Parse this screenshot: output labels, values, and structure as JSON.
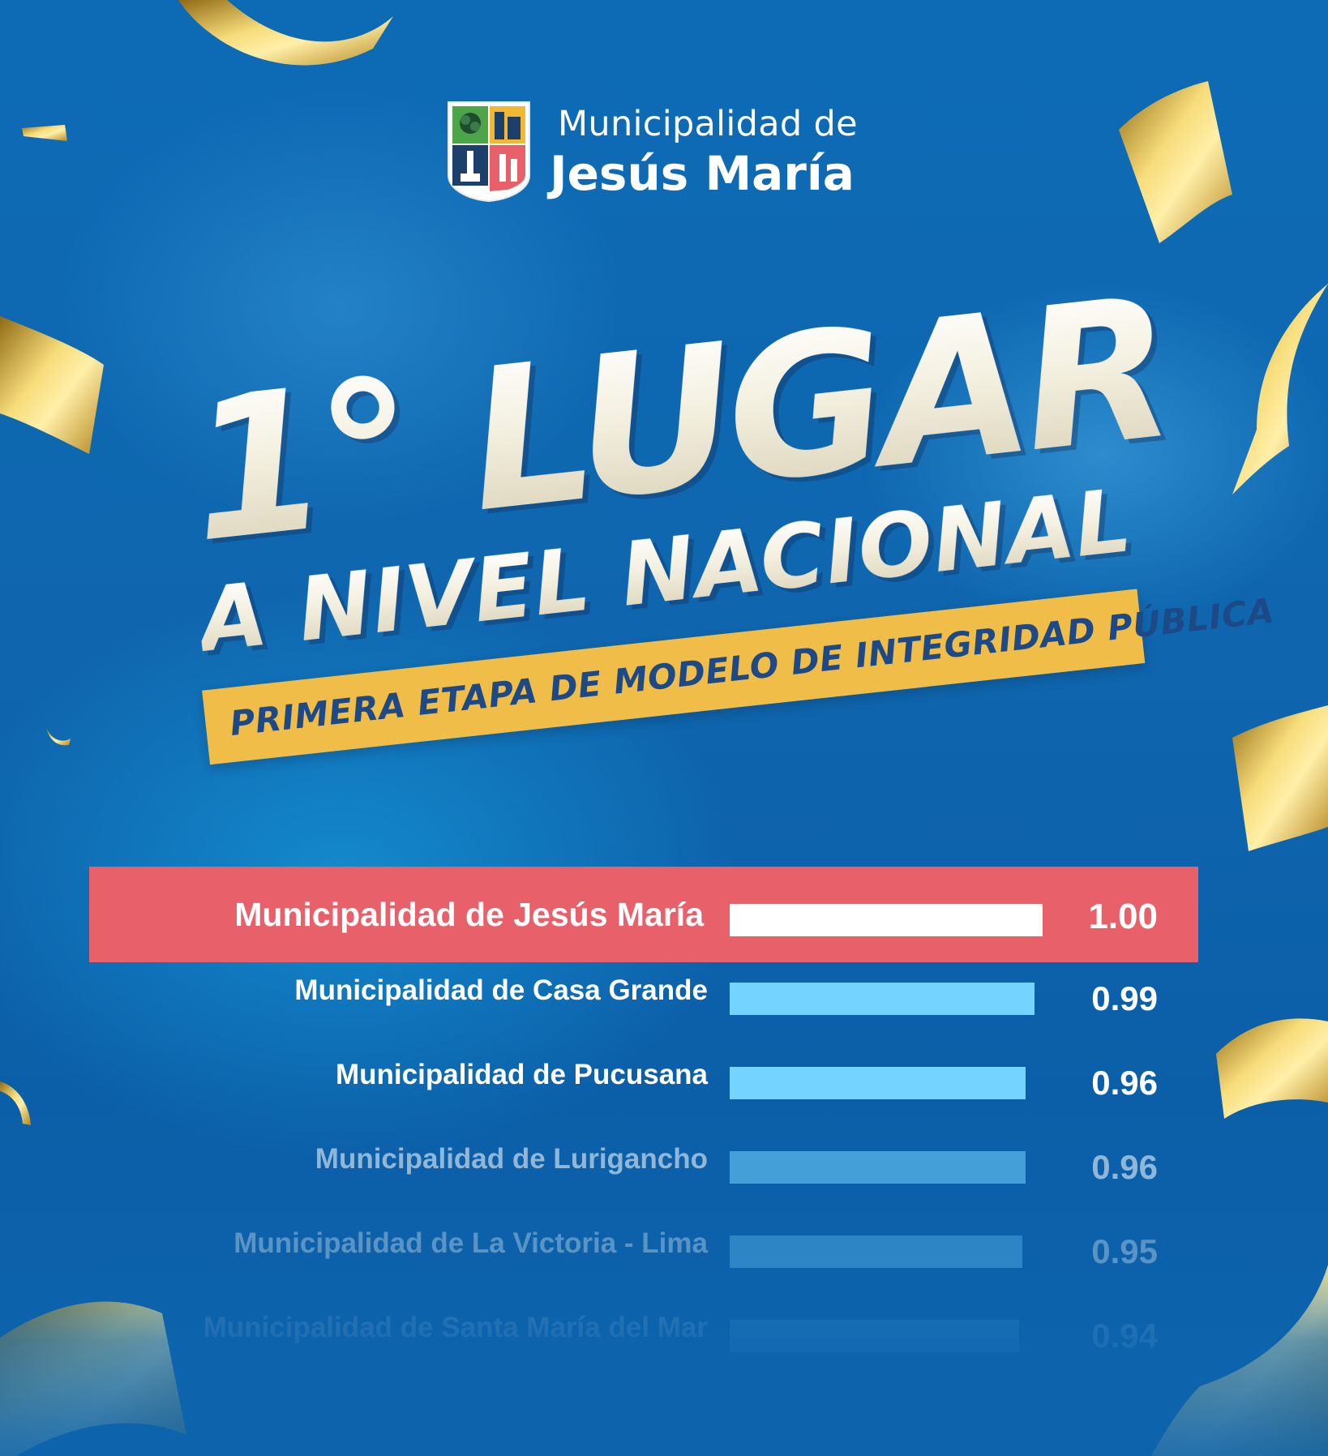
{
  "header": {
    "line1": "Municipalidad de",
    "line2": "Jesús María"
  },
  "headline": {
    "place": "1° LUGAR",
    "level": "A NIVEL NACIONAL",
    "banner": "PRIMERA ETAPA DE MODELO DE INTEGRIDAD PÚBLICA"
  },
  "colors": {
    "highlight": "#e8606a",
    "bar_primary": "#ffffff",
    "bar_secondary": "#74d3ff",
    "banner": "#f0bd48"
  },
  "chart_data": {
    "type": "bar",
    "orientation": "horizontal",
    "title": "",
    "categories": [
      "Municipalidad de Jesús María",
      "Municipalidad de Casa Grande",
      "Municipalidad de Pucusana",
      "Municipalidad de Lurigancho",
      "Municipalidad de La Victoria - Lima",
      "Municipalidad de Santa María del Mar"
    ],
    "values": [
      1.0,
      0.99,
      0.96,
      0.96,
      0.95,
      0.94
    ],
    "value_labels": [
      "1.00",
      "0.99",
      "0.96",
      "0.96",
      "0.95",
      "0.94"
    ],
    "highlighted_index": 0,
    "xlim": [
      0,
      1.0
    ],
    "xlabel": "",
    "ylabel": "",
    "grid": false,
    "legend": "none"
  }
}
